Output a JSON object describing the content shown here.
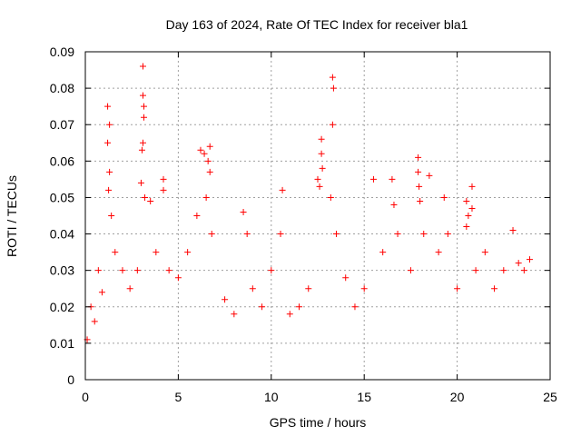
{
  "chart_data": {
    "type": "scatter",
    "title": "Day 163 of 2024, Rate Of TEC Index for receiver bla1",
    "xlabel": "GPS time / hours",
    "ylabel": "ROTI / TECUs",
    "xlim": [
      0,
      25
    ],
    "ylim": [
      0,
      0.09
    ],
    "x_ticks": [
      "0",
      "5",
      "10",
      "15",
      "20",
      "25"
    ],
    "y_ticks": [
      "0",
      "0.01",
      "0.02",
      "0.03",
      "0.04",
      "0.05",
      "0.06",
      "0.07",
      "0.08",
      "0.09"
    ],
    "grid": true,
    "marker": "+",
    "color": "#ff0000",
    "series": [
      {
        "name": "bla1",
        "points": [
          [
            0.1,
            0.011
          ],
          [
            0.3,
            0.02
          ],
          [
            0.5,
            0.016
          ],
          [
            0.7,
            0.03
          ],
          [
            0.9,
            0.024
          ],
          [
            1.2,
            0.075
          ],
          [
            1.2,
            0.065
          ],
          [
            1.3,
            0.07
          ],
          [
            1.3,
            0.057
          ],
          [
            1.25,
            0.052
          ],
          [
            1.4,
            0.045
          ],
          [
            1.6,
            0.035
          ],
          [
            2.0,
            0.03
          ],
          [
            2.4,
            0.025
          ],
          [
            2.8,
            0.03
          ],
          [
            3.1,
            0.086
          ],
          [
            3.1,
            0.078
          ],
          [
            3.15,
            0.075
          ],
          [
            3.15,
            0.072
          ],
          [
            3.1,
            0.065
          ],
          [
            3.05,
            0.063
          ],
          [
            3.0,
            0.054
          ],
          [
            3.2,
            0.05
          ],
          [
            3.5,
            0.049
          ],
          [
            3.8,
            0.035
          ],
          [
            4.2,
            0.055
          ],
          [
            4.2,
            0.052
          ],
          [
            4.5,
            0.03
          ],
          [
            5.0,
            0.028
          ],
          [
            5.5,
            0.035
          ],
          [
            6.2,
            0.063
          ],
          [
            6.4,
            0.062
          ],
          [
            6.6,
            0.06
          ],
          [
            6.7,
            0.064
          ],
          [
            6.7,
            0.057
          ],
          [
            6.5,
            0.05
          ],
          [
            6.0,
            0.045
          ],
          [
            6.8,
            0.04
          ],
          [
            7.5,
            0.022
          ],
          [
            8.0,
            0.018
          ],
          [
            8.5,
            0.046
          ],
          [
            8.7,
            0.04
          ],
          [
            9.0,
            0.025
          ],
          [
            9.5,
            0.02
          ],
          [
            10.0,
            0.03
          ],
          [
            10.6,
            0.052
          ],
          [
            10.5,
            0.04
          ],
          [
            11.0,
            0.018
          ],
          [
            11.5,
            0.02
          ],
          [
            12.0,
            0.025
          ],
          [
            12.5,
            0.055
          ],
          [
            12.7,
            0.066
          ],
          [
            12.7,
            0.062
          ],
          [
            12.75,
            0.058
          ],
          [
            12.6,
            0.053
          ],
          [
            13.3,
            0.083
          ],
          [
            13.35,
            0.08
          ],
          [
            13.3,
            0.07
          ],
          [
            13.2,
            0.05
          ],
          [
            13.5,
            0.04
          ],
          [
            14.0,
            0.028
          ],
          [
            14.5,
            0.02
          ],
          [
            15.0,
            0.025
          ],
          [
            15.5,
            0.055
          ],
          [
            16.0,
            0.035
          ],
          [
            16.5,
            0.055
          ],
          [
            16.6,
            0.048
          ],
          [
            16.8,
            0.04
          ],
          [
            17.5,
            0.03
          ],
          [
            17.9,
            0.061
          ],
          [
            17.9,
            0.057
          ],
          [
            17.95,
            0.053
          ],
          [
            18.0,
            0.049
          ],
          [
            18.2,
            0.04
          ],
          [
            18.5,
            0.056
          ],
          [
            19.0,
            0.035
          ],
          [
            19.3,
            0.05
          ],
          [
            19.5,
            0.04
          ],
          [
            20.0,
            0.025
          ],
          [
            20.5,
            0.049
          ],
          [
            20.6,
            0.045
          ],
          [
            20.5,
            0.042
          ],
          [
            20.8,
            0.053
          ],
          [
            20.8,
            0.047
          ],
          [
            21.0,
            0.03
          ],
          [
            21.5,
            0.035
          ],
          [
            22.0,
            0.025
          ],
          [
            22.5,
            0.03
          ],
          [
            23.0,
            0.041
          ],
          [
            23.3,
            0.032
          ],
          [
            23.6,
            0.03
          ],
          [
            23.9,
            0.033
          ]
        ]
      }
    ]
  }
}
